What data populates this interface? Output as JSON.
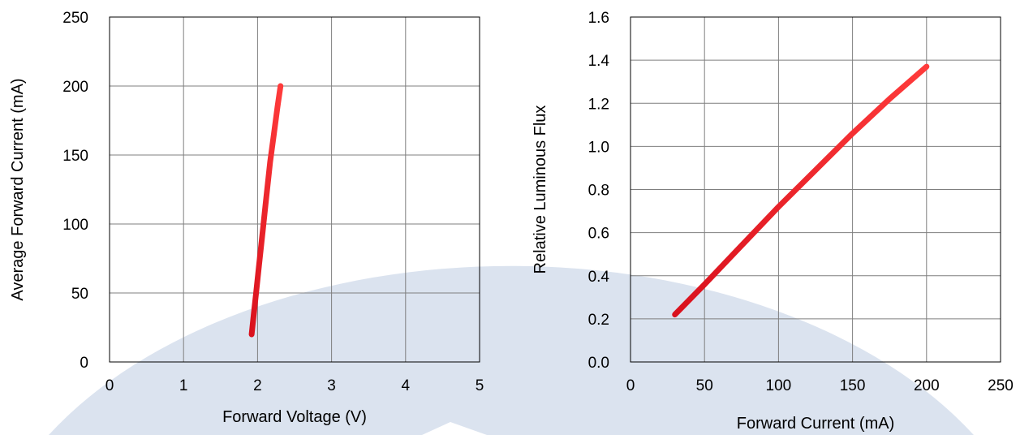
{
  "colors": {
    "curve_start": "#d9111d",
    "curve_end": "#ff3b3b",
    "watermark": "#dbe3ef"
  },
  "chart_data": [
    {
      "type": "line",
      "xlabel": "Forward Voltage (V)",
      "ylabel": "Average Forward Current (mA)",
      "xlim": [
        0,
        5
      ],
      "ylim": [
        0,
        250
      ],
      "xticks": [
        0,
        1,
        2,
        3,
        4,
        5
      ],
      "yticks": [
        0,
        50,
        100,
        150,
        200,
        250
      ],
      "grid": true,
      "series": [
        {
          "x": [
            1.92,
            1.95,
            1.98,
            2.02,
            2.07,
            2.12,
            2.17,
            2.22,
            2.27,
            2.31
          ],
          "y": [
            20,
            35,
            50,
            70,
            95,
            120,
            145,
            165,
            185,
            200
          ]
        }
      ]
    },
    {
      "type": "line",
      "xlabel": "Forward Current (mA)",
      "ylabel": "Relative Luminous Flux",
      "xlim": [
        0,
        250
      ],
      "ylim": [
        0,
        1.6
      ],
      "xticks": [
        0,
        50,
        100,
        150,
        200,
        250
      ],
      "yticks": [
        "0.0",
        "0.2",
        "0.4",
        "0.6",
        "0.8",
        "1.0",
        "1.2",
        "1.4",
        "1.6"
      ],
      "grid": true,
      "series": [
        {
          "x": [
            30,
            50,
            75,
            100,
            125,
            150,
            175,
            200
          ],
          "y": [
            0.22,
            0.36,
            0.54,
            0.72,
            0.89,
            1.06,
            1.22,
            1.37
          ]
        }
      ]
    }
  ]
}
